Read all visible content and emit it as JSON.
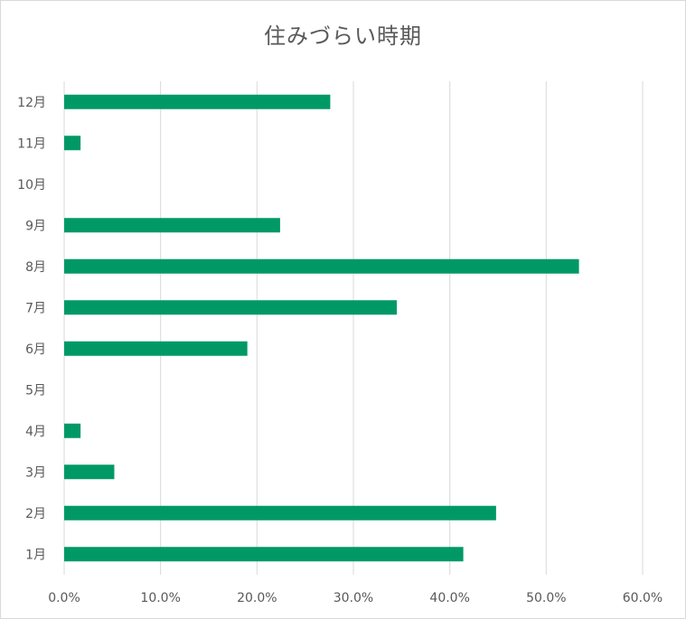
{
  "chart_data": {
    "type": "bar",
    "orientation": "horizontal",
    "title": "住みづらい時期",
    "xlabel": "",
    "ylabel": "",
    "categories": [
      "1月",
      "2月",
      "3月",
      "4月",
      "5月",
      "6月",
      "7月",
      "8月",
      "9月",
      "10月",
      "11月",
      "12月"
    ],
    "values": [
      41.4,
      44.8,
      5.2,
      1.7,
      0.0,
      19.0,
      34.5,
      53.4,
      22.4,
      0.0,
      1.7,
      27.6
    ],
    "value_unit": "%",
    "xlim": [
      0,
      60
    ],
    "x_ticks": [
      "0.0%",
      "10.0%",
      "20.0%",
      "30.0%",
      "40.0%",
      "50.0%",
      "60.0%"
    ],
    "grid": true,
    "legend": "none",
    "bar_color": "#009966"
  }
}
